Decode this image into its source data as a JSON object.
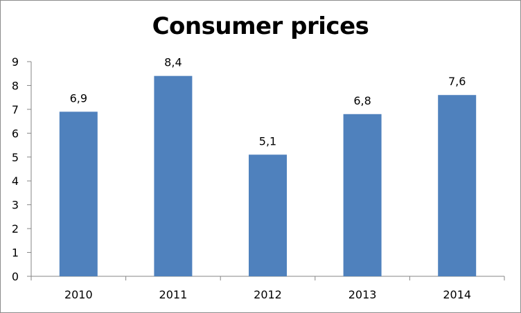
{
  "chart_data": {
    "type": "bar",
    "title": "Consumer prices",
    "categories": [
      "2010",
      "2011",
      "2012",
      "2013",
      "2014"
    ],
    "values": [
      6.9,
      8.4,
      5.1,
      6.8,
      7.6
    ],
    "data_labels": [
      "6,9",
      "8,4",
      "5,1",
      "6,8",
      "7,6"
    ],
    "y_ticks": [
      "0",
      "1",
      "2",
      "3",
      "4",
      "5",
      "6",
      "7",
      "8",
      "9"
    ],
    "ylim": [
      0,
      9
    ],
    "grid": false,
    "legend": "none",
    "bar_color": "#4f81bd",
    "axis_color": "#868686"
  }
}
